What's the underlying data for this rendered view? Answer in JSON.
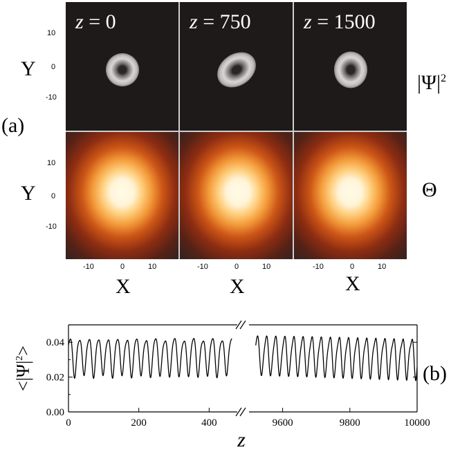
{
  "panel_a": {
    "label": "(a)",
    "columns": [
      {
        "z_label": "z = 0",
        "z_var": "z",
        "z_rest": " = 0",
        "z_value": 0,
        "top_tilt_deg": 0,
        "top_scale_x": 1.0,
        "top_scale_y": 1.0
      },
      {
        "z_label": "z = 750",
        "z_var": "z",
        "z_rest": " = 750",
        "z_value": 750,
        "top_tilt_deg": -35,
        "top_scale_x": 1.25,
        "top_scale_y": 0.95
      },
      {
        "z_label": "z = 1500",
        "z_var": "z",
        "z_rest": " = 1500",
        "z_value": 1500,
        "top_tilt_deg": 0,
        "top_scale_x": 1.0,
        "top_scale_y": 1.1
      }
    ],
    "row_labels": {
      "top": "|Ψ|²",
      "top_base": "|Ψ|",
      "top_sup": "2",
      "bottom": "Θ"
    },
    "y_axis_label": "Y",
    "x_axis_label": "X",
    "y_ticks": [
      "10",
      "0",
      "-10"
    ],
    "x_ticks": [
      "-10",
      "0",
      "10"
    ],
    "colors": {
      "top_bg": "#1e1a1a",
      "bottom_bg": "#131313",
      "separator": "#cfcfcf"
    }
  },
  "chart_data": {
    "type": "line",
    "panel_label": "(b)",
    "xlabel": "z",
    "ylabel": "<|Ψ|²>",
    "ylabel_parts": {
      "open": "<",
      "base": "|Ψ|",
      "sup": "2",
      "close": ">"
    },
    "ylim": [
      0.0,
      0.05
    ],
    "yticks": [
      "0.00",
      "0.02",
      "0.04"
    ],
    "ytick_values": [
      0.0,
      0.02,
      0.04
    ],
    "segments": [
      {
        "xlim": [
          0,
          480
        ],
        "xticks": [
          "0",
          "200",
          "400"
        ],
        "xtick_values": [
          0,
          200,
          400
        ],
        "data_x_range": [
          0,
          465
        ],
        "period": 27,
        "peak": 0.043,
        "trough": 0.022
      },
      {
        "xlim": [
          9500,
          10000
        ],
        "xticks": [
          "9600",
          "9800",
          "10000"
        ],
        "xtick_values": [
          9600,
          9800,
          10000
        ],
        "data_x_range": [
          9520,
          10000
        ],
        "period": 27,
        "peak": 0.043,
        "trough": 0.021
      }
    ],
    "axis_break": "//"
  }
}
